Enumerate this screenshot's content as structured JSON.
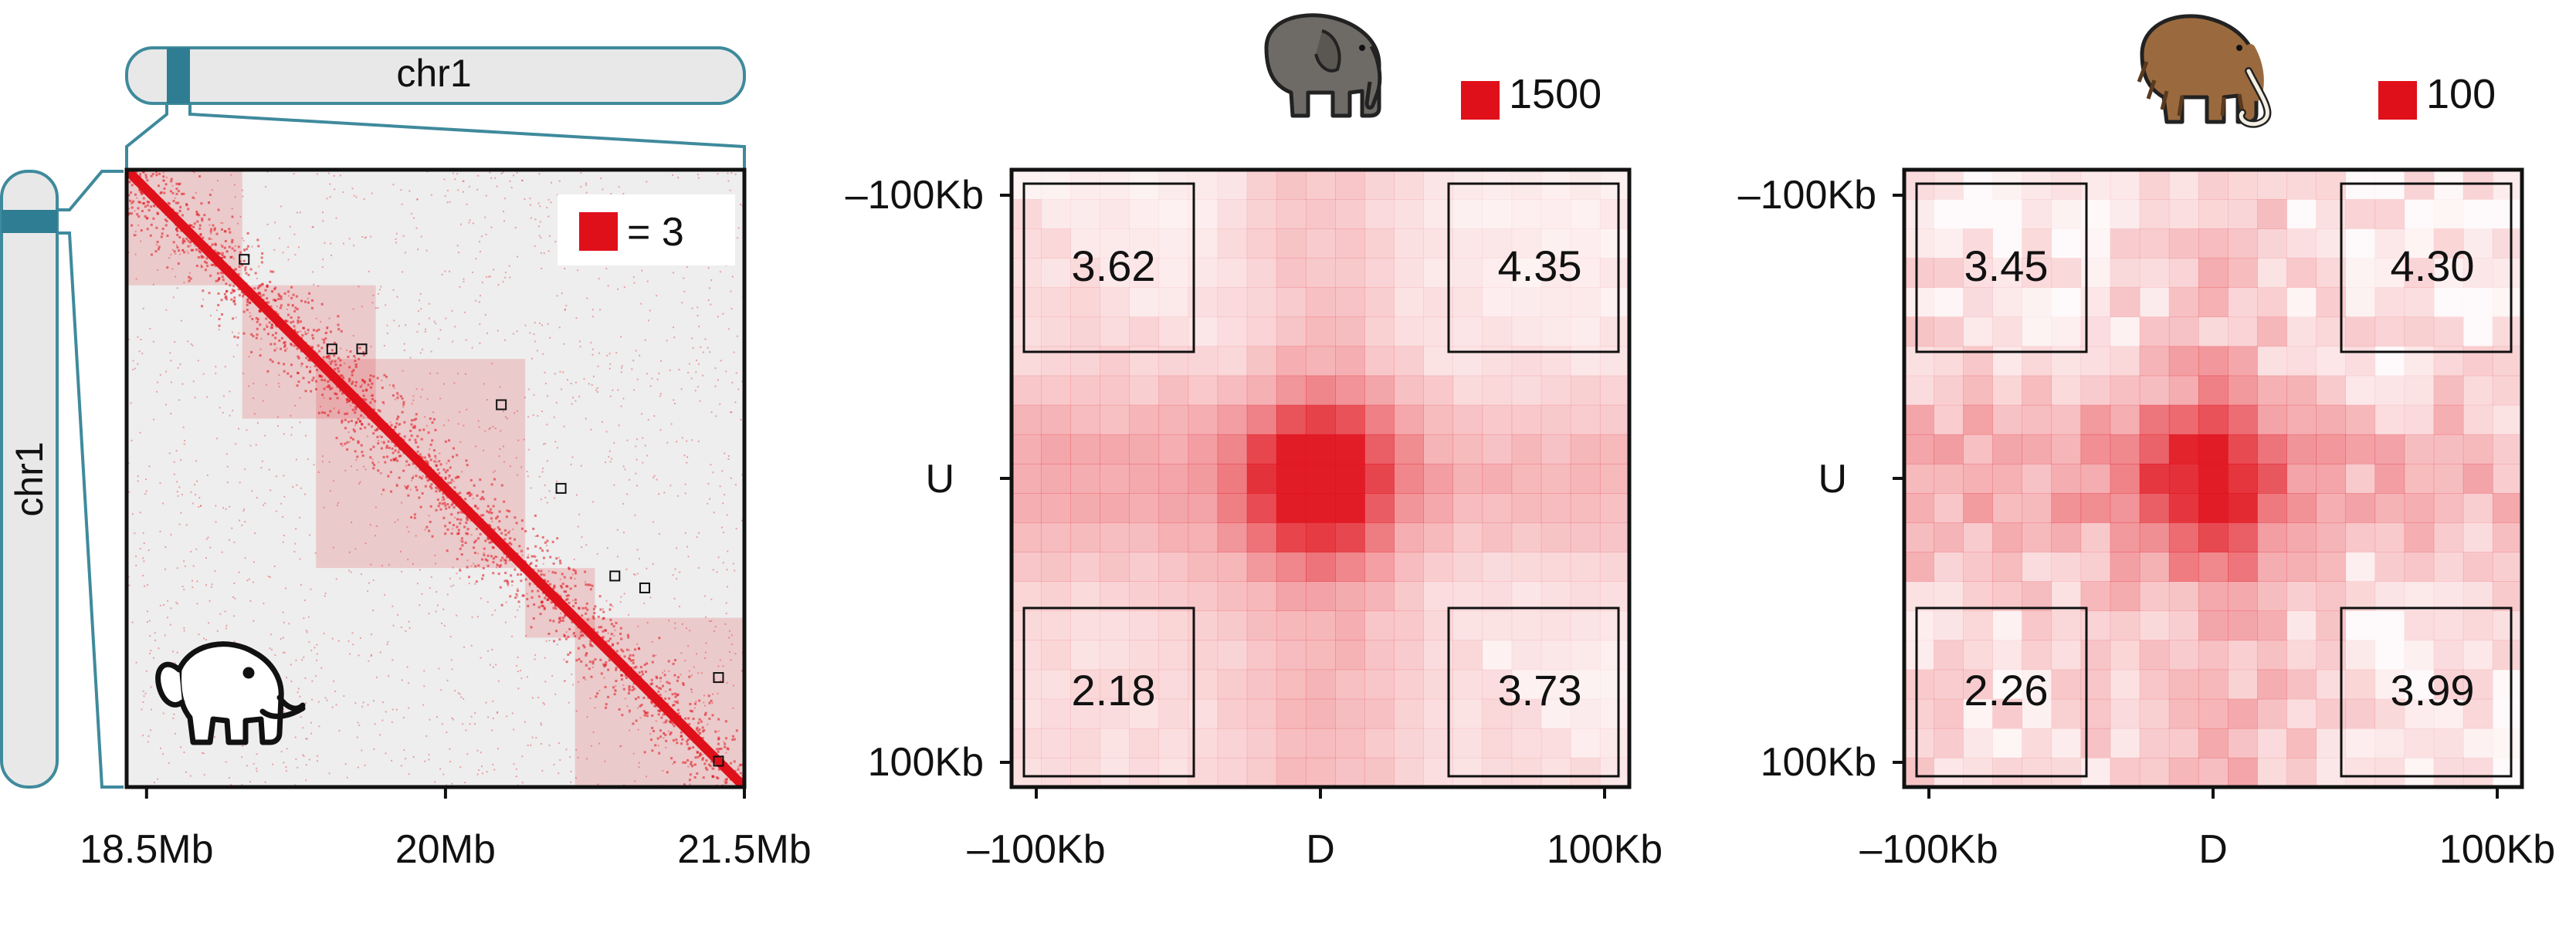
{
  "colors": {
    "accent": "#e0101a",
    "chromosome_stroke": "#3f8a9c",
    "chromosome_fill": "#e8e8e8",
    "chromosome_band": "#2f7d93",
    "map_background": "#eeeeee",
    "elephant_body": "#6e6b66",
    "mammoth_body": "#9a6a3e"
  },
  "icons": [
    "asian-elephant-icon",
    "elephant-outline-icon",
    "woolly-mammoth-icon"
  ],
  "panel_a": {
    "chromosome_h_label": "chr1",
    "chromosome_v_label": "chr1",
    "legend_label": "= 3"
  },
  "chart_data": [
    {
      "type": "heatmap",
      "title": "",
      "xlabel": "",
      "ylabel": "",
      "x_range_mb": [
        18.4,
        21.5
      ],
      "y_range_mb": [
        18.4,
        21.5
      ],
      "x_ticks": [
        {
          "value": 18.5,
          "label": "18.5Mb"
        },
        {
          "value": 20.0,
          "label": "20Mb"
        },
        {
          "value": 21.5,
          "label": "21.5Mb"
        }
      ],
      "legend": {
        "label": "= 3",
        "placement": "top-right"
      },
      "domains_mb": [
        [
          18.4,
          18.98
        ],
        [
          18.98,
          19.65
        ],
        [
          19.35,
          20.4
        ],
        [
          20.4,
          20.75
        ],
        [
          20.65,
          21.5
        ]
      ],
      "loops_mb": [
        [
          18.85,
          18.99
        ],
        [
          19.3,
          19.43
        ],
        [
          19.3,
          19.58
        ],
        [
          19.58,
          20.28
        ],
        [
          20.0,
          20.58
        ],
        [
          20.44,
          20.85
        ],
        [
          20.95,
          21.37
        ],
        [
          21.37,
          21.37
        ],
        [
          20.5,
          21.0
        ]
      ]
    },
    {
      "type": "heatmap",
      "title": "",
      "legend": {
        "label": "1500",
        "placement": "top-right"
      },
      "x_ticks": [
        "–100Kb",
        "D",
        "100Kb"
      ],
      "y_ticks": [
        "–100Kb",
        "U",
        "100Kb"
      ],
      "corner_values": {
        "top_left": "3.62",
        "top_right": "4.35",
        "bottom_left": "2.18",
        "bottom_right": "3.73"
      },
      "center_peak": "high",
      "grid": [
        10,
        10
      ]
    },
    {
      "type": "heatmap",
      "title": "",
      "legend": {
        "label": "100",
        "placement": "top-right"
      },
      "x_ticks": [
        "–100Kb",
        "D",
        "100Kb"
      ],
      "y_ticks": [
        "–100Kb",
        "U",
        "100Kb"
      ],
      "corner_values": {
        "top_left": "3.45",
        "top_right": "4.30",
        "bottom_left": "2.26",
        "bottom_right": "3.99"
      },
      "center_peak": "medium",
      "grid": [
        10,
        10
      ]
    }
  ]
}
